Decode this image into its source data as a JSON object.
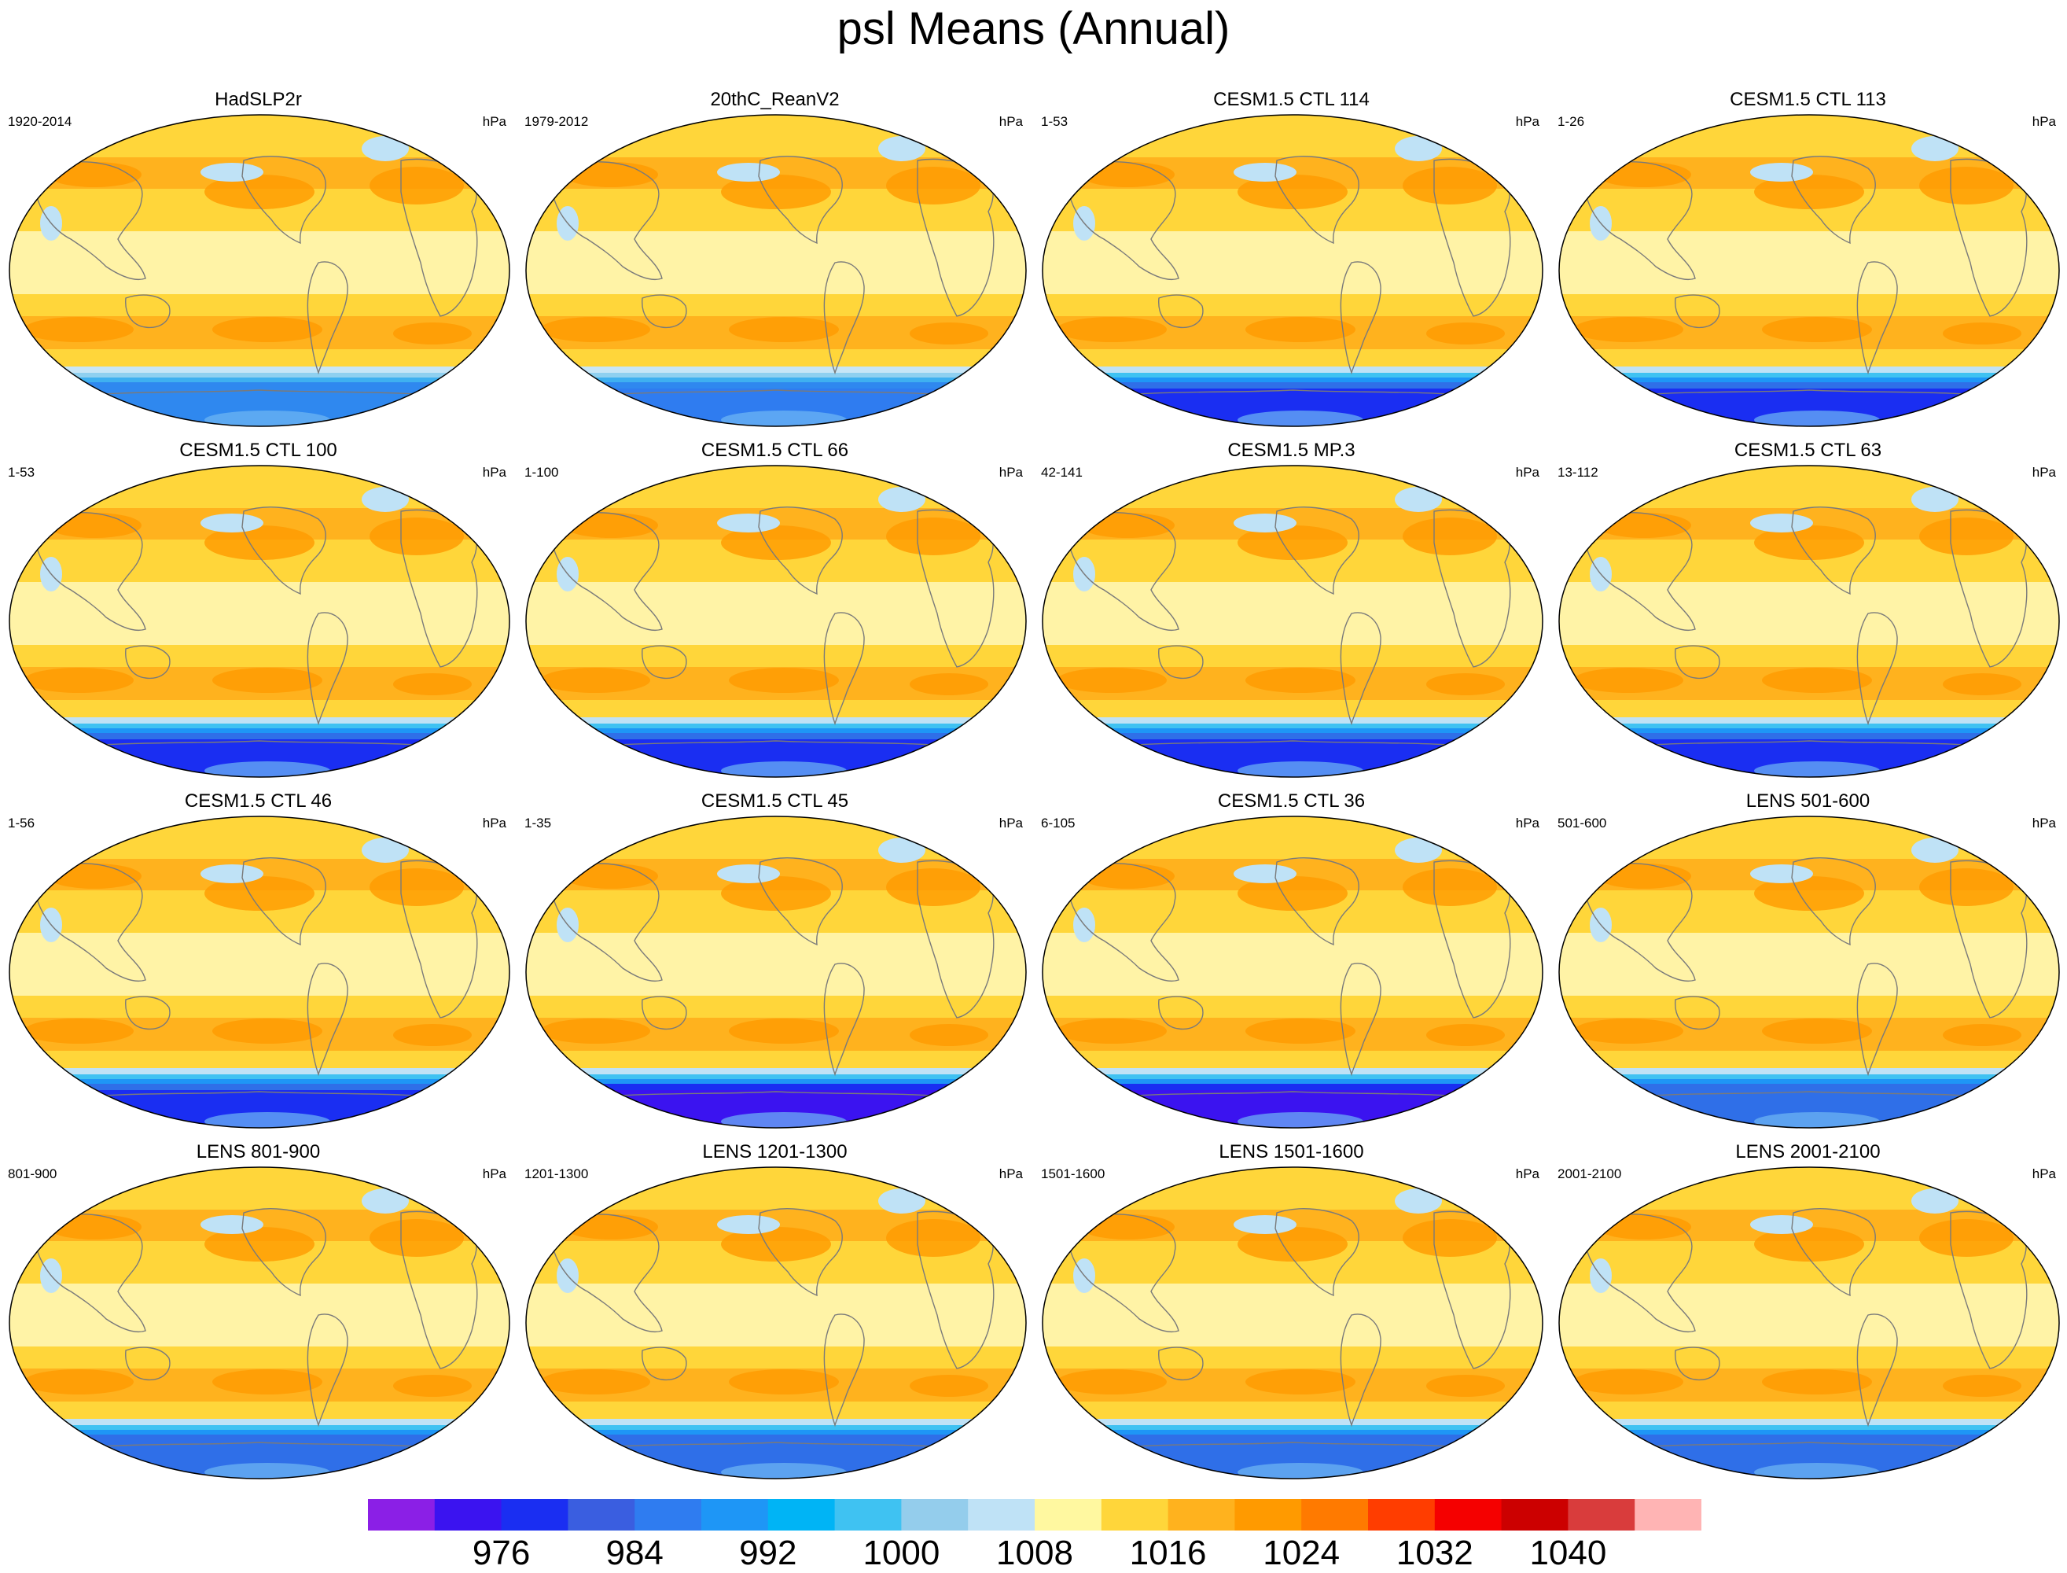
{
  "title": "psl Means (Annual)",
  "units": "hPa",
  "panels": [
    {
      "title": "HadSLP2r",
      "period": "1920-2014",
      "variant": "obs1"
    },
    {
      "title": "20thC_ReanV2",
      "period": "1979-2012",
      "variant": "obs2"
    },
    {
      "title": "CESM1.5 CTL 114",
      "period": "1-53",
      "variant": "model"
    },
    {
      "title": "CESM1.5 CTL 113",
      "period": "1-26",
      "variant": "model"
    },
    {
      "title": "CESM1.5 CTL 100",
      "period": "1-53",
      "variant": "model"
    },
    {
      "title": "CESM1.5 CTL 66",
      "period": "1-100",
      "variant": "model"
    },
    {
      "title": "CESM1.5 MP.3",
      "period": "42-141",
      "variant": "model"
    },
    {
      "title": "CESM1.5 CTL 63",
      "period": "13-112",
      "variant": "model"
    },
    {
      "title": "CESM1.5 CTL 46",
      "period": "1-56",
      "variant": "model"
    },
    {
      "title": "CESM1.5 CTL 45",
      "period": "1-35",
      "variant": "deep"
    },
    {
      "title": "CESM1.5 CTL 36",
      "period": "6-105",
      "variant": "deep"
    },
    {
      "title": "LENS 501-600",
      "period": "501-600",
      "variant": "lens"
    },
    {
      "title": "LENS 801-900",
      "period": "801-900",
      "variant": "lens"
    },
    {
      "title": "LENS 1201-1300",
      "period": "1201-1300",
      "variant": "lens"
    },
    {
      "title": "LENS 1501-1600",
      "period": "1501-1600",
      "variant": "lens"
    },
    {
      "title": "LENS 2001-2100",
      "period": "2001-2100",
      "variant": "lens"
    }
  ],
  "colorbar": {
    "colors": [
      "#8b1fe6",
      "#3b13f0",
      "#1a2ef2",
      "#3a5ee0",
      "#2f7cf0",
      "#1e96f6",
      "#00b4f5",
      "#3fc2f2",
      "#94cdec",
      "#bfe2f6",
      "#fff8a0",
      "#ffd63a",
      "#ffb21e",
      "#ff9a00",
      "#ff7a00",
      "#ff3d00",
      "#f50000",
      "#cc0000",
      "#d93c3c",
      "#ffb4b4"
    ],
    "labels": [
      "976",
      "984",
      "992",
      "1000",
      "1008",
      "1016",
      "1024",
      "1032",
      "1040"
    ]
  }
}
